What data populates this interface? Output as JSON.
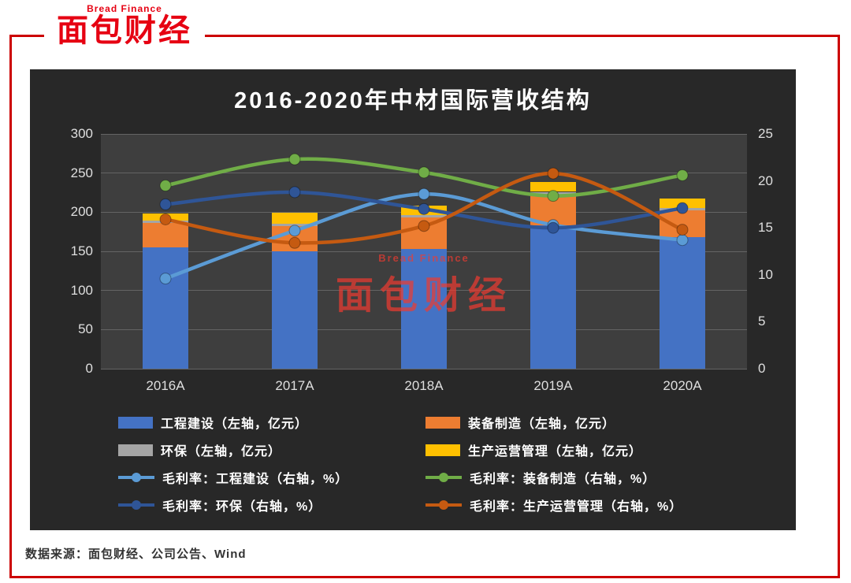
{
  "page": {
    "logo": {
      "top": "Bread Finance",
      "main": "面包财经"
    },
    "source": "数据来源：面包财经、公司公告、Wind"
  },
  "chart_data": {
    "type": "bar",
    "subtype": "stacked-bar-with-lines",
    "title": "2016-2020年中材国际营收结构",
    "categories": [
      "2016A",
      "2017A",
      "2018A",
      "2019A",
      "2020A"
    ],
    "left_axis": {
      "min": 0,
      "max": 300,
      "ticks": [
        0,
        50,
        100,
        150,
        200,
        250,
        300
      ],
      "unit": "亿元"
    },
    "right_axis": {
      "min": 0,
      "max": 25,
      "ticks": [
        0,
        5,
        10,
        15,
        20,
        25
      ],
      "unit": "%"
    },
    "grid": true,
    "legend_position": "bottom",
    "bar_series": [
      {
        "name": "工程建设（左轴，亿元）",
        "color": "#4472c4",
        "values": [
          155,
          150,
          153,
          183,
          168
        ]
      },
      {
        "name": "装备制造（左轴，亿元）",
        "color": "#ed7d31",
        "values": [
          31,
          32,
          40,
          38,
          34
        ]
      },
      {
        "name": "环保（左轴，亿元）",
        "color": "#a5a5a5",
        "values": [
          3,
          3,
          3,
          5,
          3
        ]
      },
      {
        "name": "生产运营管理（左轴，亿元）",
        "color": "#ffc000",
        "values": [
          9,
          14,
          12,
          13,
          12
        ]
      }
    ],
    "line_series": [
      {
        "name": "毛利率：工程建设（右轴，%）",
        "color": "#5b9bd5",
        "values": [
          9.6,
          14.7,
          18.6,
          15.3,
          13.7
        ]
      },
      {
        "name": "毛利率：装备制造（右轴，%）",
        "color": "#70ad47",
        "values": [
          19.5,
          22.3,
          20.9,
          18.4,
          20.6
        ]
      },
      {
        "name": "毛利率：环保（右轴，%）",
        "color": "#2f5597",
        "values": [
          17.5,
          18.8,
          17.0,
          15.0,
          17.1
        ]
      },
      {
        "name": "毛利率：生产运营管理（右轴，%）",
        "color": "#c55a11",
        "values": [
          15.9,
          13.4,
          15.2,
          20.8,
          14.8
        ]
      }
    ],
    "watermark": {
      "top": "Bread Finance",
      "main": "面包财经"
    },
    "colors": {
      "chart_bg": "#282828",
      "plot_bg": "#3e3e3e",
      "frame_red": "#cc0000",
      "brand_red": "#e60012"
    }
  }
}
